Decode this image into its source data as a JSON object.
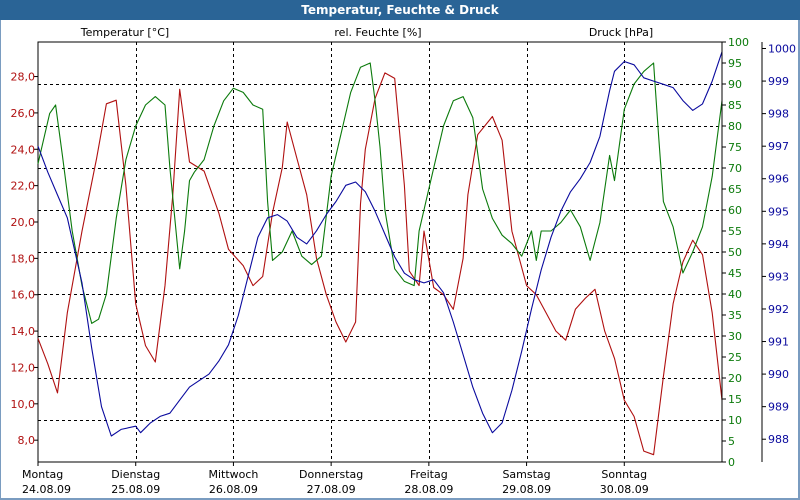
{
  "window": {
    "title": "Temperatur, Feuchte & Druck"
  },
  "chart_data": {
    "type": "line",
    "title": "Temperatur, Feuchte & Druck",
    "colors": {
      "temp": "#b01010",
      "hum": "#0b7a0b",
      "press": "#0a0a9e",
      "grid": "#000000",
      "border": "#7a9cc0"
    },
    "x": {
      "range": [
        0,
        7
      ],
      "days": [
        {
          "name": "Montag",
          "date": "24.08.09"
        },
        {
          "name": "Dienstag",
          "date": "25.08.09"
        },
        {
          "name": "Mittwoch",
          "date": "26.08.09"
        },
        {
          "name": "Donnerstag",
          "date": "27.08.09"
        },
        {
          "name": "Freitag",
          "date": "28.08.09"
        },
        {
          "name": "Samstag",
          "date": "29.08.09"
        },
        {
          "name": "Sonntag",
          "date": "30.08.09"
        }
      ]
    },
    "axes": {
      "temp": {
        "label": "Temperatur [°C]",
        "range": [
          6.8,
          29.9
        ],
        "ticks": [
          "8,0",
          "10,0",
          "12,0",
          "14,0",
          "16,0",
          "18,0",
          "20,0",
          "22,0",
          "24,0",
          "26,0",
          "28,0"
        ],
        "tick_values": [
          8,
          10,
          12,
          14,
          16,
          18,
          20,
          22,
          24,
          26,
          28
        ]
      },
      "hum": {
        "label": "rel. Feuchte [%]",
        "range": [
          0,
          100
        ],
        "ticks": [
          "0",
          "5",
          "10",
          "15",
          "20",
          "25",
          "30",
          "35",
          "40",
          "45",
          "50",
          "55",
          "60",
          "65",
          "70",
          "75",
          "80",
          "85",
          "90",
          "95",
          "100"
        ],
        "tick_values": [
          0,
          5,
          10,
          15,
          20,
          25,
          30,
          35,
          40,
          45,
          50,
          55,
          60,
          65,
          70,
          75,
          80,
          85,
          90,
          95,
          100
        ]
      },
      "press": {
        "label": "Druck [hPa]",
        "range": [
          987.3,
          1000.2
        ],
        "ticks": [
          "988",
          "989",
          "990",
          "991",
          "992",
          "993",
          "994",
          "995",
          "996",
          "997",
          "998",
          "999",
          "1000"
        ],
        "tick_values": [
          988,
          989,
          990,
          991,
          992,
          993,
          994,
          995,
          996,
          997,
          998,
          999,
          1000
        ]
      }
    },
    "series": [
      {
        "name": "Temperatur",
        "axis": "temp",
        "points": [
          [
            0,
            13.6
          ],
          [
            0.1,
            12.2
          ],
          [
            0.2,
            10.6
          ],
          [
            0.3,
            15
          ],
          [
            0.45,
            19.5
          ],
          [
            0.6,
            23.5
          ],
          [
            0.7,
            26.5
          ],
          [
            0.8,
            26.7
          ],
          [
            0.9,
            22
          ],
          [
            1.0,
            15.5
          ],
          [
            1.1,
            13.2
          ],
          [
            1.2,
            12.3
          ],
          [
            1.3,
            16.5
          ],
          [
            1.38,
            21.5
          ],
          [
            1.45,
            27.3
          ],
          [
            1.55,
            23.3
          ],
          [
            1.7,
            22.8
          ],
          [
            1.85,
            20.5
          ],
          [
            1.95,
            18.5
          ],
          [
            2.1,
            17.6
          ],
          [
            2.2,
            16.5
          ],
          [
            2.3,
            17
          ],
          [
            2.4,
            20.5
          ],
          [
            2.5,
            23
          ],
          [
            2.55,
            25.5
          ],
          [
            2.65,
            23.5
          ],
          [
            2.75,
            21.5
          ],
          [
            2.85,
            18
          ],
          [
            2.95,
            16
          ],
          [
            3.05,
            14.5
          ],
          [
            3.15,
            13.4
          ],
          [
            3.25,
            14.5
          ],
          [
            3.3,
            21
          ],
          [
            3.35,
            24
          ],
          [
            3.45,
            26.8
          ],
          [
            3.55,
            28.2
          ],
          [
            3.65,
            27.9
          ],
          [
            3.75,
            22
          ],
          [
            3.8,
            17.3
          ],
          [
            3.9,
            16.5
          ],
          [
            3.95,
            19.5
          ],
          [
            4.05,
            16.4
          ],
          [
            4.15,
            16
          ],
          [
            4.25,
            15.2
          ],
          [
            4.35,
            18
          ],
          [
            4.4,
            21.5
          ],
          [
            4.5,
            24.8
          ],
          [
            4.65,
            25.8
          ],
          [
            4.75,
            24.5
          ],
          [
            4.85,
            19.5
          ],
          [
            5.0,
            16.5
          ],
          [
            5.1,
            16
          ],
          [
            5.2,
            15
          ],
          [
            5.3,
            14
          ],
          [
            5.4,
            13.5
          ],
          [
            5.5,
            15.2
          ],
          [
            5.6,
            15.8
          ],
          [
            5.7,
            16.3
          ],
          [
            5.8,
            14
          ],
          [
            5.9,
            12.5
          ],
          [
            6.0,
            10.2
          ],
          [
            6.1,
            9.3
          ],
          [
            6.2,
            7.4
          ],
          [
            6.3,
            7.2
          ],
          [
            6.4,
            11.5
          ],
          [
            6.5,
            15.5
          ],
          [
            6.6,
            17.8
          ],
          [
            6.7,
            19
          ],
          [
            6.8,
            18.2
          ],
          [
            6.9,
            15
          ],
          [
            7.0,
            10.2
          ]
        ]
      },
      {
        "name": "rel. Feuchte",
        "axis": "hum",
        "points": [
          [
            0,
            71
          ],
          [
            0.07,
            78
          ],
          [
            0.12,
            83
          ],
          [
            0.18,
            85
          ],
          [
            0.25,
            73
          ],
          [
            0.35,
            55
          ],
          [
            0.45,
            42
          ],
          [
            0.55,
            33
          ],
          [
            0.62,
            34
          ],
          [
            0.7,
            40
          ],
          [
            0.8,
            58
          ],
          [
            0.9,
            72
          ],
          [
            1.0,
            80
          ],
          [
            1.1,
            85
          ],
          [
            1.2,
            87
          ],
          [
            1.3,
            85
          ],
          [
            1.35,
            70
          ],
          [
            1.45,
            46
          ],
          [
            1.5,
            55
          ],
          [
            1.55,
            67
          ],
          [
            1.6,
            69
          ],
          [
            1.7,
            72
          ],
          [
            1.8,
            80
          ],
          [
            1.9,
            86
          ],
          [
            2.0,
            89
          ],
          [
            2.1,
            88
          ],
          [
            2.2,
            85
          ],
          [
            2.3,
            84
          ],
          [
            2.35,
            62
          ],
          [
            2.4,
            48
          ],
          [
            2.5,
            50
          ],
          [
            2.6,
            55
          ],
          [
            2.7,
            49
          ],
          [
            2.8,
            47
          ],
          [
            2.9,
            49
          ],
          [
            3.0,
            68
          ],
          [
            3.1,
            78
          ],
          [
            3.2,
            88
          ],
          [
            3.3,
            94
          ],
          [
            3.4,
            95
          ],
          [
            3.45,
            86
          ],
          [
            3.5,
            75
          ],
          [
            3.55,
            60
          ],
          [
            3.65,
            46
          ],
          [
            3.75,
            43
          ],
          [
            3.85,
            42
          ],
          [
            3.9,
            55
          ],
          [
            3.97,
            62
          ],
          [
            4.05,
            70
          ],
          [
            4.15,
            80
          ],
          [
            4.25,
            86
          ],
          [
            4.35,
            87
          ],
          [
            4.45,
            82
          ],
          [
            4.55,
            65
          ],
          [
            4.65,
            58
          ],
          [
            4.75,
            54
          ],
          [
            4.85,
            52
          ],
          [
            4.95,
            49
          ],
          [
            5.05,
            55
          ],
          [
            5.1,
            48
          ],
          [
            5.15,
            55
          ],
          [
            5.25,
            55
          ],
          [
            5.35,
            57
          ],
          [
            5.45,
            60
          ],
          [
            5.55,
            56
          ],
          [
            5.65,
            48
          ],
          [
            5.75,
            57
          ],
          [
            5.85,
            73
          ],
          [
            5.9,
            67
          ],
          [
            6.0,
            84
          ],
          [
            6.1,
            90
          ],
          [
            6.2,
            93
          ],
          [
            6.3,
            95
          ],
          [
            6.35,
            78
          ],
          [
            6.4,
            62
          ],
          [
            6.5,
            56
          ],
          [
            6.6,
            45
          ],
          [
            6.7,
            50
          ],
          [
            6.8,
            56
          ],
          [
            6.9,
            68
          ],
          [
            7.0,
            86
          ]
        ]
      },
      {
        "name": "Druck",
        "axis": "press",
        "points": [
          [
            0,
            997.0
          ],
          [
            0.1,
            996.2
          ],
          [
            0.2,
            995.5
          ],
          [
            0.3,
            994.8
          ],
          [
            0.45,
            992.8
          ],
          [
            0.55,
            990.8
          ],
          [
            0.65,
            989.0
          ],
          [
            0.75,
            988.1
          ],
          [
            0.85,
            988.3
          ],
          [
            1.0,
            988.4
          ],
          [
            1.05,
            988.2
          ],
          [
            1.15,
            988.5
          ],
          [
            1.25,
            988.7
          ],
          [
            1.35,
            988.8
          ],
          [
            1.45,
            989.2
          ],
          [
            1.55,
            989.6
          ],
          [
            1.65,
            989.8
          ],
          [
            1.75,
            990.0
          ],
          [
            1.85,
            990.4
          ],
          [
            1.95,
            990.9
          ],
          [
            2.05,
            991.8
          ],
          [
            2.15,
            993.0
          ],
          [
            2.25,
            994.2
          ],
          [
            2.35,
            994.8
          ],
          [
            2.45,
            994.9
          ],
          [
            2.55,
            994.7
          ],
          [
            2.65,
            994.2
          ],
          [
            2.75,
            994.0
          ],
          [
            2.85,
            994.4
          ],
          [
            2.95,
            994.9
          ],
          [
            3.05,
            995.3
          ],
          [
            3.15,
            995.8
          ],
          [
            3.25,
            995.9
          ],
          [
            3.35,
            995.6
          ],
          [
            3.45,
            995.0
          ],
          [
            3.55,
            994.3
          ],
          [
            3.65,
            993.6
          ],
          [
            3.75,
            993.1
          ],
          [
            3.85,
            992.9
          ],
          [
            3.95,
            992.8
          ],
          [
            4.05,
            992.9
          ],
          [
            4.15,
            992.5
          ],
          [
            4.25,
            991.6
          ],
          [
            4.35,
            990.6
          ],
          [
            4.45,
            989.6
          ],
          [
            4.55,
            988.8
          ],
          [
            4.65,
            988.2
          ],
          [
            4.75,
            988.5
          ],
          [
            4.85,
            989.5
          ],
          [
            4.95,
            990.7
          ],
          [
            5.05,
            992.0
          ],
          [
            5.15,
            993.2
          ],
          [
            5.25,
            994.2
          ],
          [
            5.35,
            995.0
          ],
          [
            5.45,
            995.6
          ],
          [
            5.55,
            996.0
          ],
          [
            5.65,
            996.5
          ],
          [
            5.75,
            997.3
          ],
          [
            5.8,
            998.0
          ],
          [
            5.85,
            998.7
          ],
          [
            5.9,
            999.3
          ],
          [
            6.0,
            999.6
          ],
          [
            6.1,
            999.5
          ],
          [
            6.2,
            999.1
          ],
          [
            6.3,
            999.0
          ],
          [
            6.4,
            998.9
          ],
          [
            6.5,
            998.8
          ],
          [
            6.6,
            998.4
          ],
          [
            6.7,
            998.1
          ],
          [
            6.8,
            998.3
          ],
          [
            6.9,
            999.0
          ],
          [
            7.0,
            999.9
          ]
        ]
      }
    ]
  }
}
